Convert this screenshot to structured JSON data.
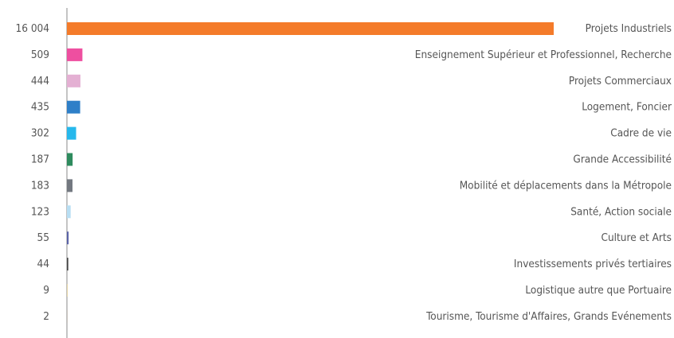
{
  "chart_data": {
    "type": "barh",
    "categories": [
      "Projets Industriels",
      "Enseignement Supérieur et Professionnel, Recherche",
      "Projets Commerciaux",
      "Logement, Foncier",
      "Cadre de vie",
      "Grande Accessibilité",
      "Mobilité et déplacements dans la Métropole",
      "Santé, Action sociale",
      "Culture et Arts",
      "Investissements privés tertiaires",
      "Logistique autre que Portuaire",
      "Tourisme, Tourisme d'Affaires, Grands Evénements"
    ],
    "values": [
      16004,
      509,
      444,
      435,
      302,
      187,
      183,
      123,
      55,
      44,
      9,
      2
    ],
    "value_labels": [
      "16 004",
      "509",
      "444",
      "435",
      "302",
      "187",
      "183",
      "123",
      "55",
      "44",
      "9",
      "2"
    ],
    "colors": [
      "#f47b2a",
      "#ee4fa0",
      "#e4b0d3",
      "#2e7fc8",
      "#26b8ec",
      "#2e8b5e",
      "#737880",
      "#b8def3",
      "#5b63a8",
      "#444444",
      "#e8b732",
      "#b87f3a"
    ]
  }
}
